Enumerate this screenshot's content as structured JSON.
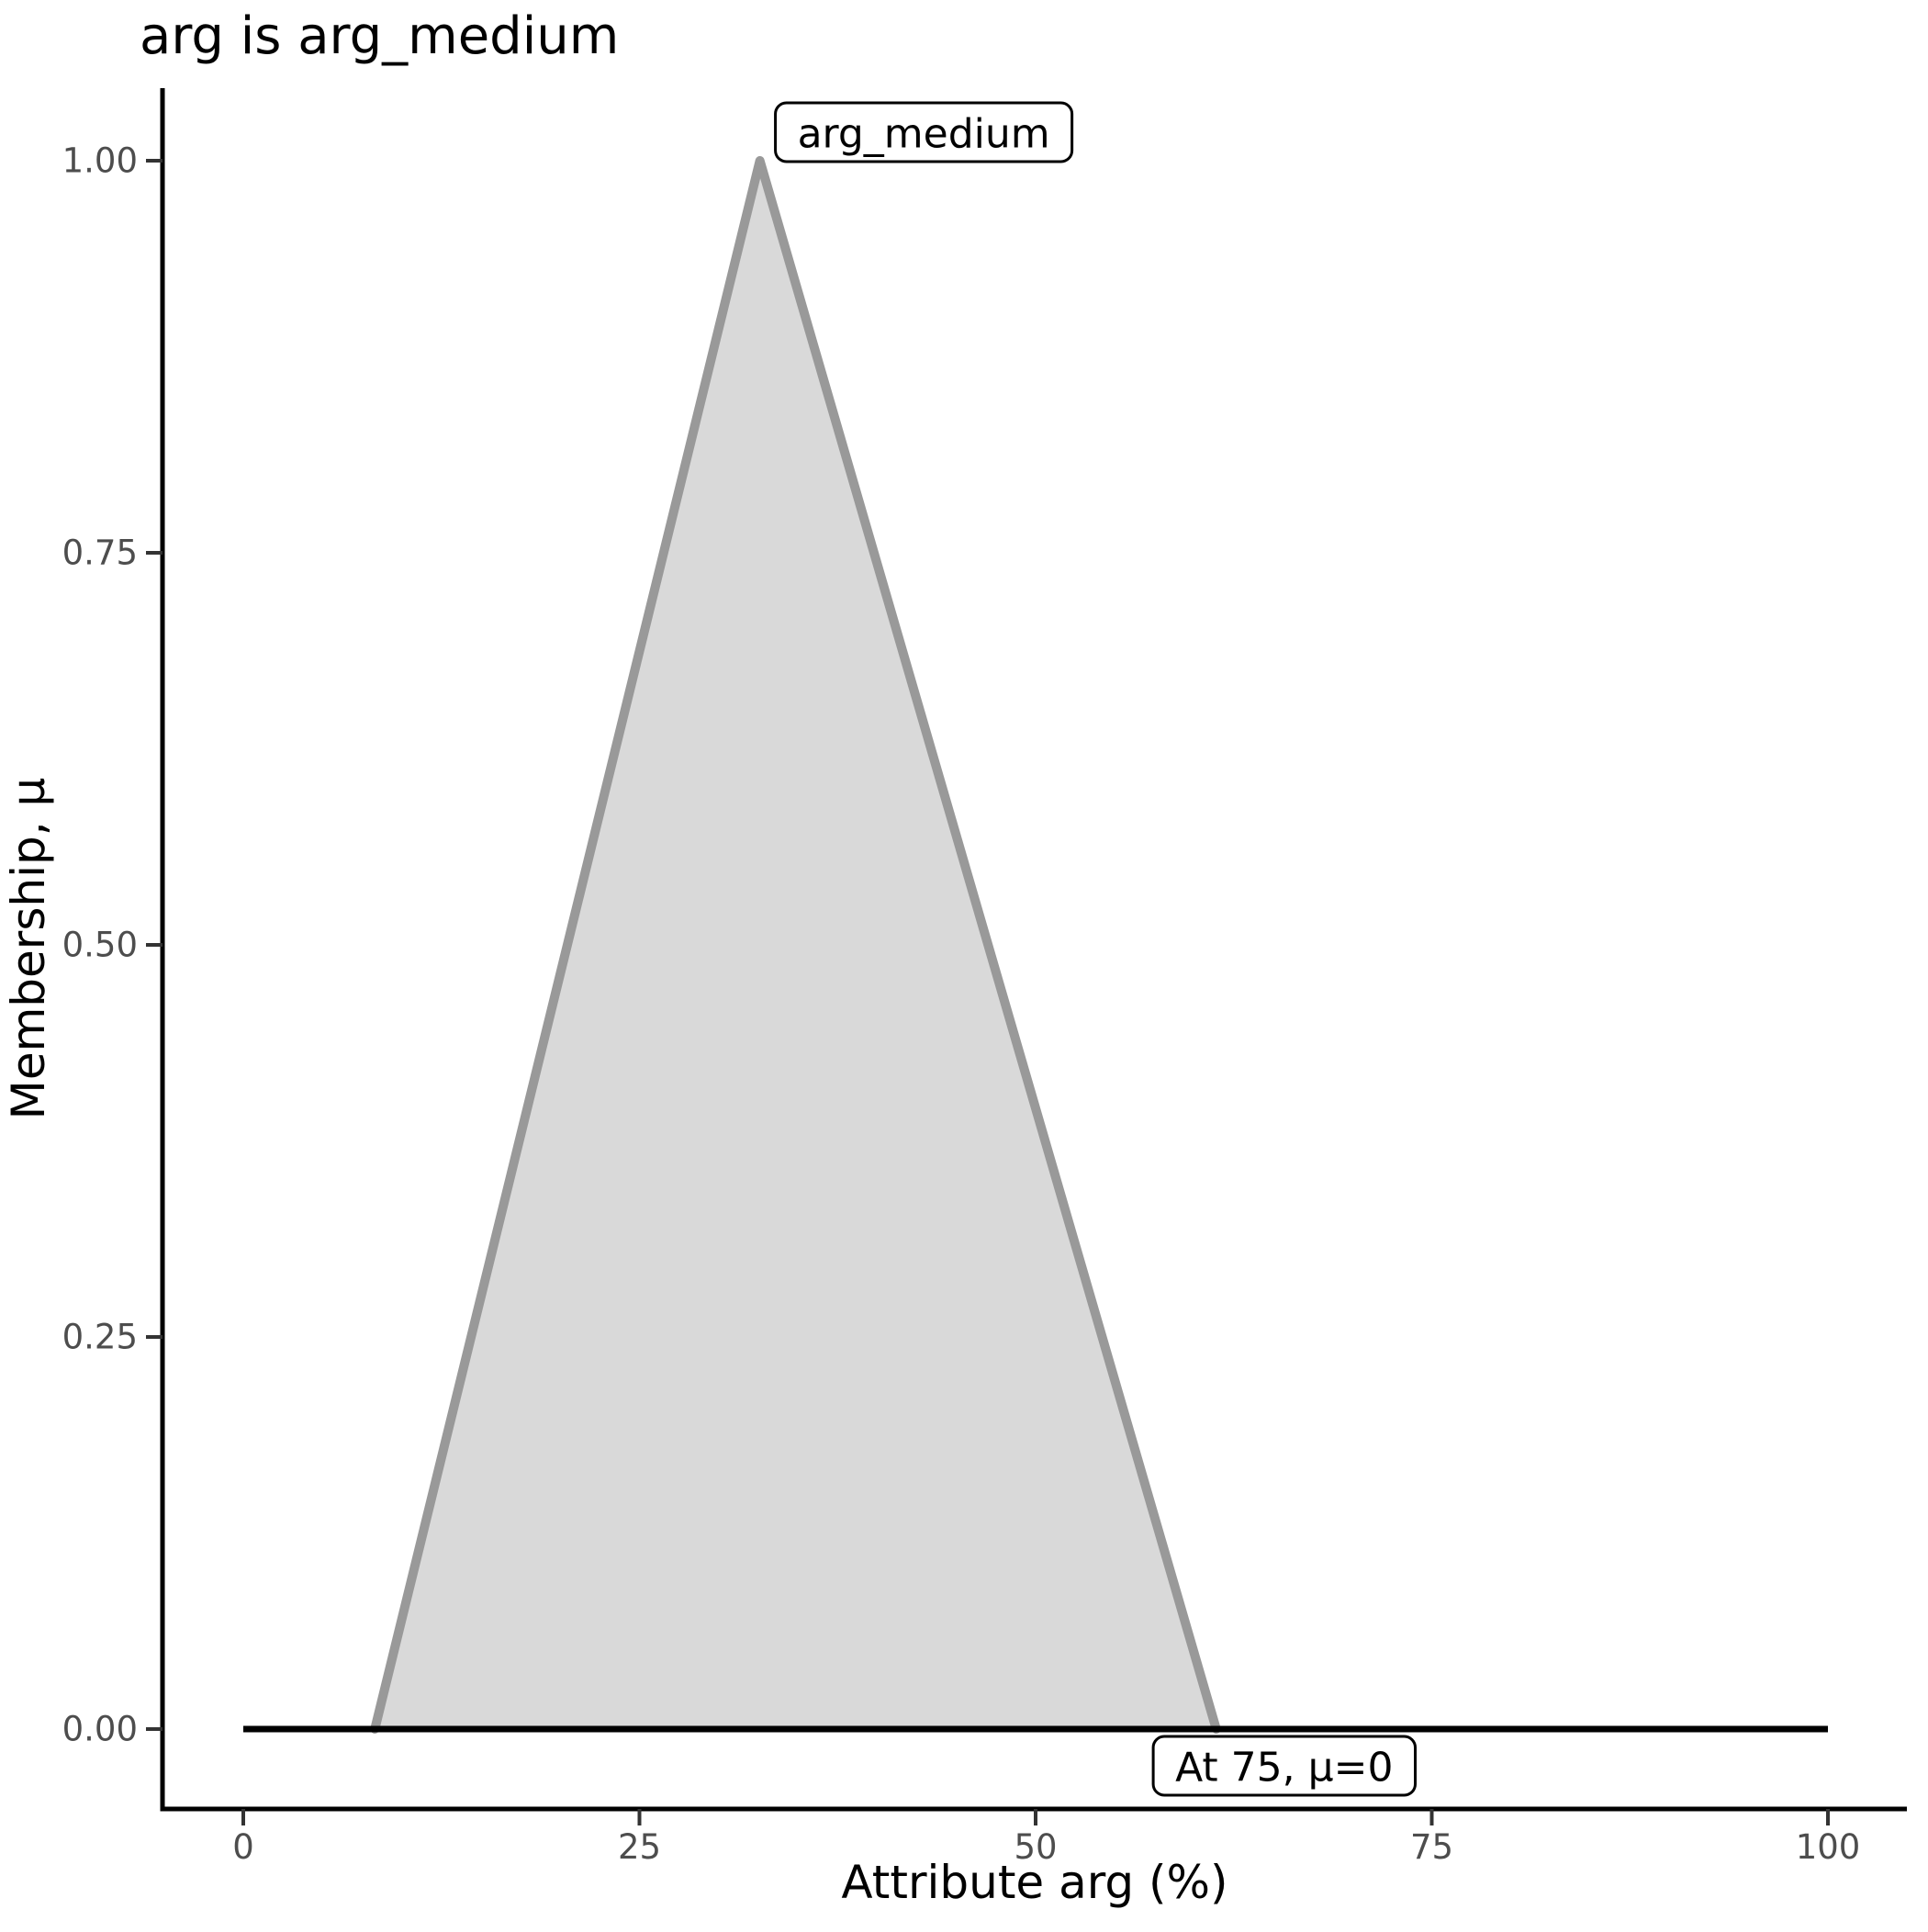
{
  "chart_data": {
    "type": "area",
    "title": "arg is arg_medium",
    "xlabel": "Attribute arg (%)",
    "ylabel": "Membership, μ",
    "xlim": [
      0,
      100
    ],
    "ylim": [
      0,
      1
    ],
    "grid": false,
    "legend": "none",
    "x_ticks": {
      "values": [
        0,
        25,
        50,
        75,
        100
      ],
      "labels": [
        "0",
        "25",
        "50",
        "75",
        "100"
      ]
    },
    "y_ticks": {
      "values": [
        0,
        0.25,
        0.5,
        0.75,
        1.0
      ],
      "labels": [
        "0.00",
        "0.25",
        "0.50",
        "0.75",
        "1.00"
      ]
    },
    "series": [
      {
        "name": "arg_medium",
        "shape": "triangular-membership-function",
        "points_x": [
          8.3,
          32.6,
          61.4
        ],
        "points_y": [
          0,
          1,
          0
        ],
        "fill": "#d9d9d9",
        "stroke": "#999999"
      }
    ],
    "baseline": {
      "y": 0,
      "x_start": 0,
      "x_end": 100,
      "color": "#000000"
    },
    "annotations": [
      {
        "text": "arg_medium",
        "x": 33,
        "y": 1
      },
      {
        "text": "At 75, μ=0",
        "x": 75,
        "y": 0
      }
    ],
    "colors": {
      "axis_line": "#000000",
      "tick_mark": "#333333",
      "tick_label": "#4d4d4d",
      "title": "#000000",
      "triangle_fill": "#d9d9d9",
      "triangle_stroke": "#999999",
      "baseline": "#000000"
    }
  }
}
